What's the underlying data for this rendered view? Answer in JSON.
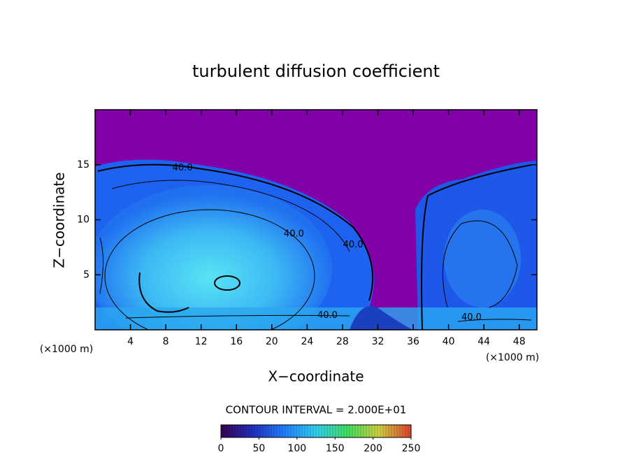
{
  "chart_data": {
    "type": "contour",
    "title": "turbulent diffusion coefficient",
    "xlabel": "X−coordinate",
    "ylabel": "Z−coordinate",
    "x_unit": "(×1000 m)",
    "x_unit_right": "(×1000 m)",
    "xlim": [
      0,
      50
    ],
    "ylim": [
      0,
      20
    ],
    "xticks": [
      4,
      8,
      12,
      16,
      20,
      24,
      28,
      32,
      36,
      40,
      44,
      48
    ],
    "yticks": [
      5,
      10,
      15
    ],
    "contour_interval_text": "CONTOUR INTERVAL = 2.000E+01",
    "contour_labels": [
      {
        "label": "40.0",
        "x": 9.9,
        "y": 14.7
      },
      {
        "label": "40.0",
        "x": 22.5,
        "y": 8.7
      },
      {
        "label": "40.0",
        "x": 29.2,
        "y": 7.7
      },
      {
        "label": "40.0",
        "x": 26.3,
        "y": 1.3
      },
      {
        "label": "40.0",
        "x": 42.6,
        "y": 1.1
      }
    ],
    "colorbar": {
      "lim": [
        0,
        250
      ],
      "ticks": [
        0,
        50,
        100,
        150,
        200,
        250
      ],
      "colors": [
        "#3a0050",
        "#2030c0",
        "#2080ff",
        "#30d0f0",
        "#40e060",
        "#d0d040",
        "#e04030"
      ]
    }
  }
}
